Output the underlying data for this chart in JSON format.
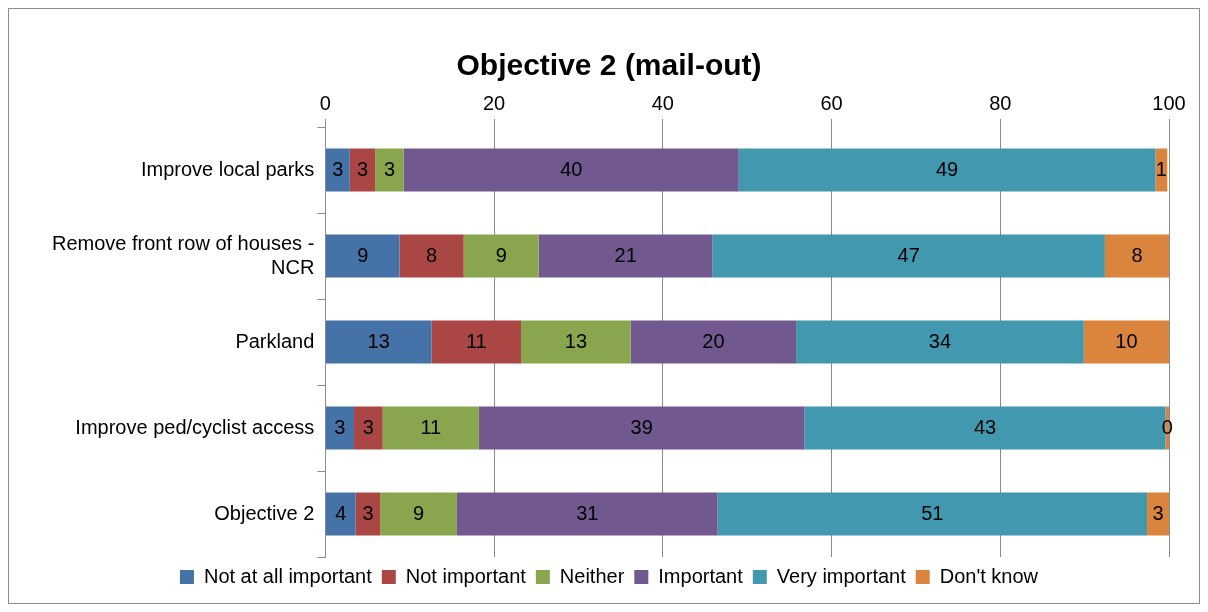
{
  "chart_data": {
    "type": "bar",
    "title": "Objective 2 (mail-out)",
    "orientation": "horizontal",
    "stacked": true,
    "categories": [
      "Improve local parks",
      "Remove front row of houses - NCR",
      "Parkland",
      "Improve ped/cyclist access",
      "Objective 2"
    ],
    "series": [
      {
        "name": "Not at all important",
        "color": "#4572a7",
        "values": [
          2.9,
          8.8,
          12.6,
          3.4,
          3.6
        ],
        "value_labels": [
          "3",
          "9",
          "13",
          "3",
          "4"
        ]
      },
      {
        "name": "Not important",
        "color": "#aa4643",
        "values": [
          3.0,
          7.6,
          10.6,
          3.4,
          2.9
        ],
        "value_labels": [
          "3",
          "8",
          "11",
          "3",
          "3"
        ]
      },
      {
        "name": "Neither",
        "color": "#89a54e",
        "values": [
          3.4,
          8.9,
          13.0,
          11.4,
          9.1
        ],
        "value_labels": [
          "3",
          "9",
          "13",
          "11",
          "9"
        ]
      },
      {
        "name": "Important",
        "color": "#71588f",
        "values": [
          39.7,
          20.6,
          19.6,
          38.6,
          30.9
        ],
        "value_labels": [
          "40",
          "21",
          "20",
          "39",
          "31"
        ]
      },
      {
        "name": "Very important",
        "color": "#4198af",
        "values": [
          49.4,
          46.5,
          34.1,
          42.8,
          50.9
        ],
        "value_labels": [
          "49",
          "47",
          "34",
          "43",
          "51"
        ]
      },
      {
        "name": "Don't know",
        "color": "#db843d",
        "values": [
          1.4,
          7.6,
          10.1,
          0.4,
          2.6
        ],
        "value_labels": [
          "1",
          "8",
          "10",
          "0",
          "3"
        ]
      }
    ],
    "xlim": [
      0,
      100
    ],
    "xticks": [
      0,
      20,
      40,
      60,
      80,
      100
    ],
    "grid": "x",
    "legend": "bottom"
  }
}
